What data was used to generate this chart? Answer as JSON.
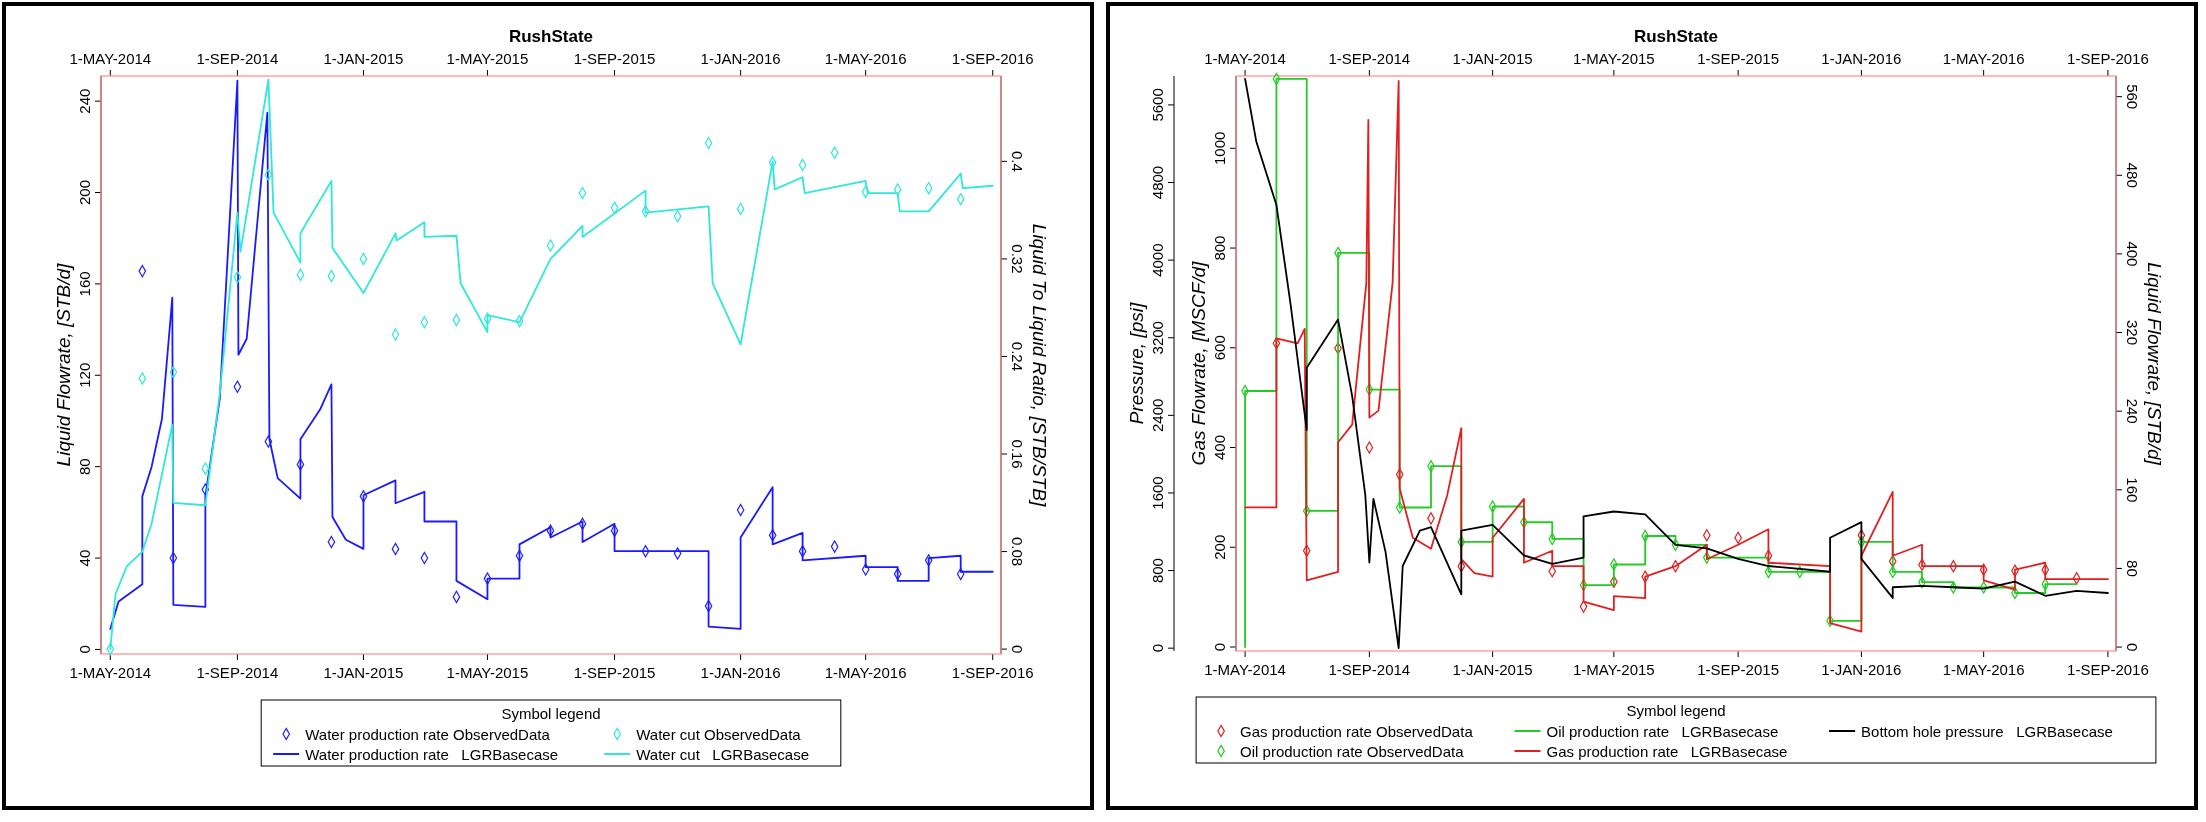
{
  "chart_data": [
    {
      "type": "line",
      "title": "RushState",
      "ylabel": "Liquid Flowrate, [STB/d]",
      "y2label": "Liquid To Liquid Ratio, [STB/STB]",
      "legend_title": "Symbol legend",
      "legend": "bottom",
      "xlim": [
        "2014-04-22",
        "2016-09-09"
      ],
      "xticks": [
        {
          "value": "2014-05-01",
          "label": "1-MAY-2014"
        },
        {
          "value": "2014-09-01",
          "label": "1-SEP-2014"
        },
        {
          "value": "2015-01-01",
          "label": "1-JAN-2015"
        },
        {
          "value": "2015-05-01",
          "label": "1-MAY-2015"
        },
        {
          "value": "2015-09-01",
          "label": "1-SEP-2015"
        },
        {
          "value": "2016-01-01",
          "label": "1-JAN-2016"
        },
        {
          "value": "2016-05-01",
          "label": "1-MAY-2016"
        },
        {
          "value": "2016-09-01",
          "label": "1-SEP-2016"
        }
      ],
      "x2lim": [
        "2014-04-22",
        "2016-09-09"
      ],
      "x2ticks": [
        {
          "value": "2014-05-01",
          "label": "1-MAY-2014"
        },
        {
          "value": "2014-09-01",
          "label": "1-SEP-2014"
        },
        {
          "value": "2015-01-01",
          "label": "1-JAN-2015"
        },
        {
          "value": "2015-05-01",
          "label": "1-MAY-2015"
        },
        {
          "value": "2015-09-01",
          "label": "1-SEP-2015"
        },
        {
          "value": "2016-01-01",
          "label": "1-JAN-2016"
        },
        {
          "value": "2016-05-01",
          "label": "1-MAY-2016"
        },
        {
          "value": "2016-09-01",
          "label": "1-SEP-2016"
        }
      ],
      "ylim": [
        -2,
        251
      ],
      "yticks": [
        0,
        40,
        80,
        120,
        160,
        200,
        240
      ],
      "y2lim": [
        -0.004,
        0.47
      ],
      "y2ticks": [
        0,
        0.08,
        0.16,
        0.24,
        0.32,
        0.4
      ],
      "series": [
        {
          "name": "Water production rate ObservedData",
          "type": "scatter",
          "marker": "diamond",
          "color": "#2020ff",
          "x": [
            "2014-06-01",
            "2014-07-01",
            "2014-08-01",
            "2014-09-01",
            "2014-10-01",
            "2014-11-01",
            "2014-12-01",
            "2015-01-01",
            "2015-02-01",
            "2015-03-01",
            "2015-04-01",
            "2015-05-01",
            "2015-06-01",
            "2015-07-01",
            "2015-08-01",
            "2015-09-01",
            "2015-10-01",
            "2015-11-01",
            "2015-12-01",
            "2016-01-01",
            "2016-02-01",
            "2016-03-01",
            "2016-04-01",
            "2016-05-01",
            "2016-06-01",
            "2016-07-01",
            "2016-08-01"
          ],
          "values": [
            165.6,
            40,
            70,
            115,
            91,
            81,
            47,
            67,
            44,
            40,
            23,
            31,
            41,
            52,
            55,
            52,
            43,
            42,
            19,
            61,
            50,
            43,
            45,
            35,
            33,
            39,
            33
          ]
        },
        {
          "name": "Water production rate   LGRBasecase",
          "type": "line",
          "marker": "none",
          "color": "#1a1aff",
          "x": [
            "2014-05-01",
            "2014-05-09",
            "2014-06-01",
            "2014-06-01",
            "2014-06-10",
            "2014-06-20",
            "2014-06-30",
            "2014-07-01",
            "2014-08-01",
            "2014-08-01",
            "2014-08-15",
            "2014-09-01",
            "2014-09-02",
            "2014-09-10",
            "2014-09-30",
            "2014-10-02",
            "2014-10-10",
            "2014-11-01",
            "2014-11-01",
            "2014-11-20",
            "2014-12-01",
            "2014-12-02",
            "2014-12-15",
            "2015-01-01",
            "2015-01-01",
            "2015-02-01",
            "2015-02-01",
            "2015-03-01",
            "2015-03-01",
            "2015-04-01",
            "2015-04-01",
            "2015-05-01",
            "2015-05-01",
            "2015-06-01",
            "2015-06-01",
            "2015-07-01",
            "2015-07-01",
            "2015-08-01",
            "2015-08-01",
            "2015-09-01",
            "2015-09-01",
            "2015-12-01",
            "2015-12-01",
            "2016-01-01",
            "2016-01-01",
            "2016-02-01",
            "2016-02-01",
            "2016-03-01",
            "2016-03-01",
            "2016-05-01",
            "2016-05-01",
            "2016-06-01",
            "2016-06-01",
            "2016-07-01",
            "2016-07-01",
            "2016-08-01",
            "2016-08-01",
            "2016-09-01"
          ],
          "values": [
            9,
            21,
            28.5,
            67,
            80,
            101,
            154,
            19.5,
            18.6,
            67,
            110,
            249,
            129,
            136,
            235,
            92,
            75,
            66,
            92,
            105,
            116,
            58,
            48,
            44,
            67.5,
            74,
            64,
            69,
            56,
            56,
            30,
            22,
            31,
            31,
            46,
            53.5,
            49,
            56,
            47,
            55,
            43,
            43,
            10,
            9,
            49,
            71,
            46,
            51,
            39,
            41,
            36,
            36,
            30,
            30,
            40,
            41,
            34,
            34
          ]
        },
        {
          "name": "Water cut ObservedData",
          "type": "scatter",
          "marker": "diamond",
          "axis": "y2",
          "color": "#2ee8d8",
          "x": [
            "2014-05-01",
            "2014-06-01",
            "2014-07-01",
            "2014-08-01",
            "2014-09-01",
            "2014-10-01",
            "2014-11-01",
            "2014-12-01",
            "2015-01-01",
            "2015-02-01",
            "2015-03-01",
            "2015-04-01",
            "2015-05-01",
            "2015-06-01",
            "2015-07-01",
            "2015-08-01",
            "2015-09-01",
            "2015-10-01",
            "2015-11-01",
            "2015-12-01",
            "2016-01-01",
            "2016-02-01",
            "2016-03-01",
            "2016-04-01",
            "2016-05-01",
            "2016-06-01",
            "2016-07-01",
            "2016-08-01"
          ],
          "values": [
            0,
            0.222,
            0.227,
            0.148,
            0.305,
            0.389,
            0.307,
            0.306,
            0.32,
            0.258,
            0.268,
            0.27,
            0.271,
            0.269,
            0.331,
            0.374,
            0.362,
            0.359,
            0.355,
            0.415,
            0.361,
            0.399,
            0.397,
            0.407,
            0.375,
            0.377,
            0.378,
            0.369
          ]
        },
        {
          "name": "Water cut   LGRBasecase",
          "type": "line",
          "marker": "none",
          "axis": "y2",
          "color": "#2ee8d8",
          "x": [
            "2014-05-01",
            "2014-05-06",
            "2014-05-17",
            "2014-06-01",
            "2014-06-10",
            "2014-06-30",
            "2014-07-01",
            "2014-08-01",
            "2014-08-15",
            "2014-09-01",
            "2014-09-04",
            "2014-10-01",
            "2014-10-06",
            "2014-11-01",
            "2014-11-01",
            "2014-12-01",
            "2014-12-02",
            "2015-01-01",
            "2015-02-01",
            "2015-02-02",
            "2015-03-01",
            "2015-03-01",
            "2015-04-01",
            "2015-04-05",
            "2015-05-01",
            "2015-05-01",
            "2015-06-01",
            "2015-07-01",
            "2015-08-01",
            "2015-08-01",
            "2015-10-01",
            "2015-10-01",
            "2015-12-01",
            "2015-12-05",
            "2016-01-01",
            "2016-02-01",
            "2016-02-03",
            "2016-03-01",
            "2016-03-03",
            "2016-05-01",
            "2016-05-03",
            "2016-06-01",
            "2016-06-03",
            "2016-07-01",
            "2016-08-01",
            "2016-08-03",
            "2016-09-01"
          ],
          "values": [
            0,
            0.045,
            0.068,
            0.08,
            0.103,
            0.184,
            0.12,
            0.118,
            0.21,
            0.358,
            0.326,
            0.467,
            0.358,
            0.317,
            0.341,
            0.384,
            0.329,
            0.292,
            0.341,
            0.335,
            0.35,
            0.338,
            0.339,
            0.3,
            0.26,
            0.274,
            0.268,
            0.32,
            0.347,
            0.338,
            0.376,
            0.358,
            0.363,
            0.3,
            0.25,
            0.4,
            0.377,
            0.387,
            0.374,
            0.384,
            0.374,
            0.374,
            0.359,
            0.359,
            0.39,
            0.378,
            0.38
          ]
        }
      ]
    },
    {
      "type": "line",
      "title": "RushState",
      "ylabel": "Gas Flowrate, [MSCF/d]",
      "y2label": "Liquid Flowrate, [STB/d]",
      "y3label": "Pressure, [psi]",
      "legend_title": "Symbol legend",
      "legend": "bottom",
      "xlim": [
        "2014-04-22",
        "2016-09-09"
      ],
      "xticks": [
        {
          "value": "2014-05-01",
          "label": "1-MAY-2014"
        },
        {
          "value": "2014-09-01",
          "label": "1-SEP-2014"
        },
        {
          "value": "2015-01-01",
          "label": "1-JAN-2015"
        },
        {
          "value": "2015-05-01",
          "label": "1-MAY-2015"
        },
        {
          "value": "2015-09-01",
          "label": "1-SEP-2015"
        },
        {
          "value": "2016-01-01",
          "label": "1-JAN-2016"
        },
        {
          "value": "2016-05-01",
          "label": "1-MAY-2016"
        },
        {
          "value": "2016-09-01",
          "label": "1-SEP-2016"
        }
      ],
      "x2lim": [
        "2014-04-22",
        "2016-09-09"
      ],
      "x2ticks": [
        {
          "value": "2014-05-01",
          "label": "1-MAY-2014"
        },
        {
          "value": "2014-09-01",
          "label": "1-SEP-2014"
        },
        {
          "value": "2015-01-01",
          "label": "1-JAN-2015"
        },
        {
          "value": "2015-05-01",
          "label": "1-MAY-2015"
        },
        {
          "value": "2015-09-01",
          "label": "1-SEP-2015"
        },
        {
          "value": "2016-01-01",
          "label": "1-JAN-2016"
        },
        {
          "value": "2016-05-01",
          "label": "1-MAY-2016"
        },
        {
          "value": "2016-09-01",
          "label": "1-SEP-2016"
        }
      ],
      "ylim": [
        -8,
        1145
      ],
      "yticks": [
        0,
        200,
        400,
        600,
        800,
        1000
      ],
      "y2lim": [
        -4,
        581
      ],
      "y2ticks": [
        0,
        80,
        160,
        240,
        320,
        400,
        480,
        560
      ],
      "y3lim": [
        -29,
        5898
      ],
      "y3ticks": [
        0,
        800,
        1600,
        2400,
        3200,
        4000,
        4800,
        5600
      ],
      "series": [
        {
          "name": "Gas production rate ObservedData",
          "type": "scatter",
          "marker": "diamond",
          "color": "#e02020",
          "x": [
            "2014-06-01",
            "2014-07-01",
            "2014-08-01",
            "2014-09-01",
            "2014-10-01",
            "2014-11-01",
            "2014-12-01",
            "2015-03-01",
            "2015-04-01",
            "2015-05-01",
            "2015-06-01",
            "2015-07-01",
            "2015-08-01",
            "2015-09-01",
            "2015-10-01",
            "2016-01-01",
            "2016-02-01",
            "2016-03-01",
            "2016-04-01",
            "2016-05-01",
            "2016-06-01",
            "2016-07-01",
            "2016-08-01"
          ],
          "values": [
            609,
            193,
            599,
            400,
            346,
            258,
            162,
            152,
            81,
            131,
            141,
            162,
            224,
            219,
            183,
            224,
            172,
            165,
            162,
            155,
            153,
            155,
            138
          ]
        },
        {
          "name": "Oil production rate ObservedData",
          "type": "scatter",
          "marker": "diamond",
          "axis": "y2",
          "color": "#22cc22",
          "x": [
            "2014-05-01",
            "2014-06-01",
            "2014-07-01",
            "2014-08-01",
            "2014-09-01",
            "2014-10-01",
            "2014-11-01",
            "2014-12-01",
            "2015-01-01",
            "2015-02-01",
            "2015-03-01",
            "2015-04-01",
            "2015-05-01",
            "2015-06-01",
            "2015-07-01",
            "2015-08-01",
            "2015-10-01",
            "2015-11-01",
            "2015-12-01",
            "2016-01-01",
            "2016-02-01",
            "2016-03-01",
            "2016-04-01",
            "2016-05-01",
            "2016-06-01",
            "2016-07-01"
          ],
          "values": [
            260.5,
            578,
            138.5,
            401,
            262,
            142,
            184,
            107,
            143,
            127,
            110,
            63,
            84,
            113,
            104,
            91,
            76.5,
            76.5,
            26.7,
            107,
            76.5,
            66,
            60.6,
            60.6,
            55,
            64
          ]
        },
        {
          "name": "Oil production rate   LGRBasecase",
          "type": "line",
          "marker": "none",
          "axis": "y2",
          "color": "#22cc22",
          "x": [
            "2014-05-01",
            "2014-05-01",
            "2014-06-01",
            "2014-06-01",
            "2014-07-01",
            "2014-07-01",
            "2014-08-01",
            "2014-08-01",
            "2014-09-01",
            "2014-09-01",
            "2014-10-01",
            "2014-10-01",
            "2014-11-01",
            "2014-11-01",
            "2014-12-01",
            "2014-12-01",
            "2015-01-01",
            "2015-01-01",
            "2015-02-01",
            "2015-02-01",
            "2015-03-01",
            "2015-03-01",
            "2015-04-01",
            "2015-04-01",
            "2015-05-01",
            "2015-05-01",
            "2015-06-01",
            "2015-06-01",
            "2015-07-01",
            "2015-07-01",
            "2015-08-01",
            "2015-08-01",
            "2015-10-01",
            "2015-10-01",
            "2015-12-01",
            "2015-12-01",
            "2016-01-01",
            "2016-01-01",
            "2016-02-01",
            "2016-02-01",
            "2016-03-01",
            "2016-03-01",
            "2016-04-01",
            "2016-04-01",
            "2016-06-01",
            "2016-06-01",
            "2016-07-01",
            "2016-07-01",
            "2016-08-01"
          ],
          "values": [
            0,
            260.5,
            260.5,
            578,
            578,
            138.5,
            138.5,
            401,
            401,
            262,
            262,
            142,
            142,
            184,
            184,
            107,
            107,
            143,
            143,
            127,
            127,
            110,
            110,
            63,
            63,
            84,
            84,
            113,
            113,
            104,
            104,
            91,
            91,
            76.5,
            76.5,
            26.7,
            26.7,
            107,
            107,
            76.5,
            76.5,
            66,
            66,
            60.6,
            60.6,
            55,
            55,
            64,
            64
          ]
        },
        {
          "name": "Gas production rate   LGRBasecase",
          "type": "line",
          "marker": "none",
          "color": "#e02020",
          "x": [
            "2014-05-01",
            "2014-06-01",
            "2014-06-01",
            "2014-06-22",
            "2014-06-29",
            "2014-07-01",
            "2014-08-01",
            "2014-08-01",
            "2014-08-15",
            "2014-08-29",
            "2014-08-31",
            "2014-09-01",
            "2014-09-10",
            "2014-09-24",
            "2014-09-30",
            "2014-10-01",
            "2014-10-14",
            "2014-11-01",
            "2014-11-17",
            "2014-12-01",
            "2014-12-01",
            "2014-12-14",
            "2015-01-01",
            "2015-01-01",
            "2015-02-01",
            "2015-02-01",
            "2015-03-01",
            "2015-03-01",
            "2015-04-01",
            "2015-04-01",
            "2015-05-01",
            "2015-05-01",
            "2015-06-01",
            "2015-06-01",
            "2015-07-01",
            "2015-08-01",
            "2015-08-01",
            "2015-09-01",
            "2015-10-01",
            "2015-10-01",
            "2015-12-01",
            "2015-12-01",
            "2016-01-01",
            "2016-01-01",
            "2016-02-01",
            "2016-02-01",
            "2016-03-01",
            "2016-03-01",
            "2016-05-01",
            "2016-05-01",
            "2016-06-01",
            "2016-06-01",
            "2016-07-01",
            "2016-07-01",
            "2016-09-01"
          ],
          "values": [
            280,
            280,
            619,
            609,
            638,
            133.5,
            150.6,
            410.5,
            446,
            730,
            1057,
            460,
            474,
            730,
            1135,
            318,
            219,
            197,
            304,
            439,
            176,
            148,
            141,
            219,
            297,
            169,
            193,
            162,
            162,
            91,
            74,
            102,
            98,
            141,
            162,
            205,
            176,
            205,
            236,
            169,
            162,
            48,
            31,
            183,
            311,
            183,
            205,
            162,
            162,
            133.5,
            115,
            155,
            169,
            136,
            136
          ]
        },
        {
          "name": "Bottom hole pressure   LGRBasecase",
          "type": "line",
          "marker": "none",
          "axis": "y3",
          "color": "#000000",
          "x": [
            "2014-05-01",
            "2014-05-12",
            "2014-06-01",
            "2014-06-15",
            "2014-07-01",
            "2014-07-01",
            "2014-08-01",
            "2014-08-15",
            "2014-08-28",
            "2014-09-01",
            "2014-09-05",
            "2014-09-17",
            "2014-09-30",
            "2014-10-04",
            "2014-10-21",
            "2014-11-01",
            "2014-12-01",
            "2014-12-01",
            "2015-01-01",
            "2015-02-01",
            "2015-03-01",
            "2015-04-01",
            "2015-04-01",
            "2015-05-01",
            "2015-06-01",
            "2015-07-01",
            "2015-08-01",
            "2015-09-01",
            "2015-10-01",
            "2015-12-01",
            "2015-12-01",
            "2016-01-01",
            "2016-01-01",
            "2016-02-01",
            "2016-02-01",
            "2016-03-01",
            "2016-04-01",
            "2016-05-01",
            "2016-06-01",
            "2016-07-01",
            "2016-08-01",
            "2016-09-01"
          ],
          "values": [
            5869,
            5226,
            4569,
            3547,
            2248,
            2891,
            3387,
            2599,
            1577,
            883,
            1540,
            993,
            0,
            847,
            1212,
            1248,
            555,
            1212,
            1270,
            956,
            869,
            934,
            1358,
            1409,
            1380,
            1066,
            1029,
            920,
            847,
            788,
            1139,
            1299,
            920,
            518,
            628,
            642,
            628,
            613,
            686,
            540,
            591,
            569
          ]
        }
      ]
    }
  ]
}
